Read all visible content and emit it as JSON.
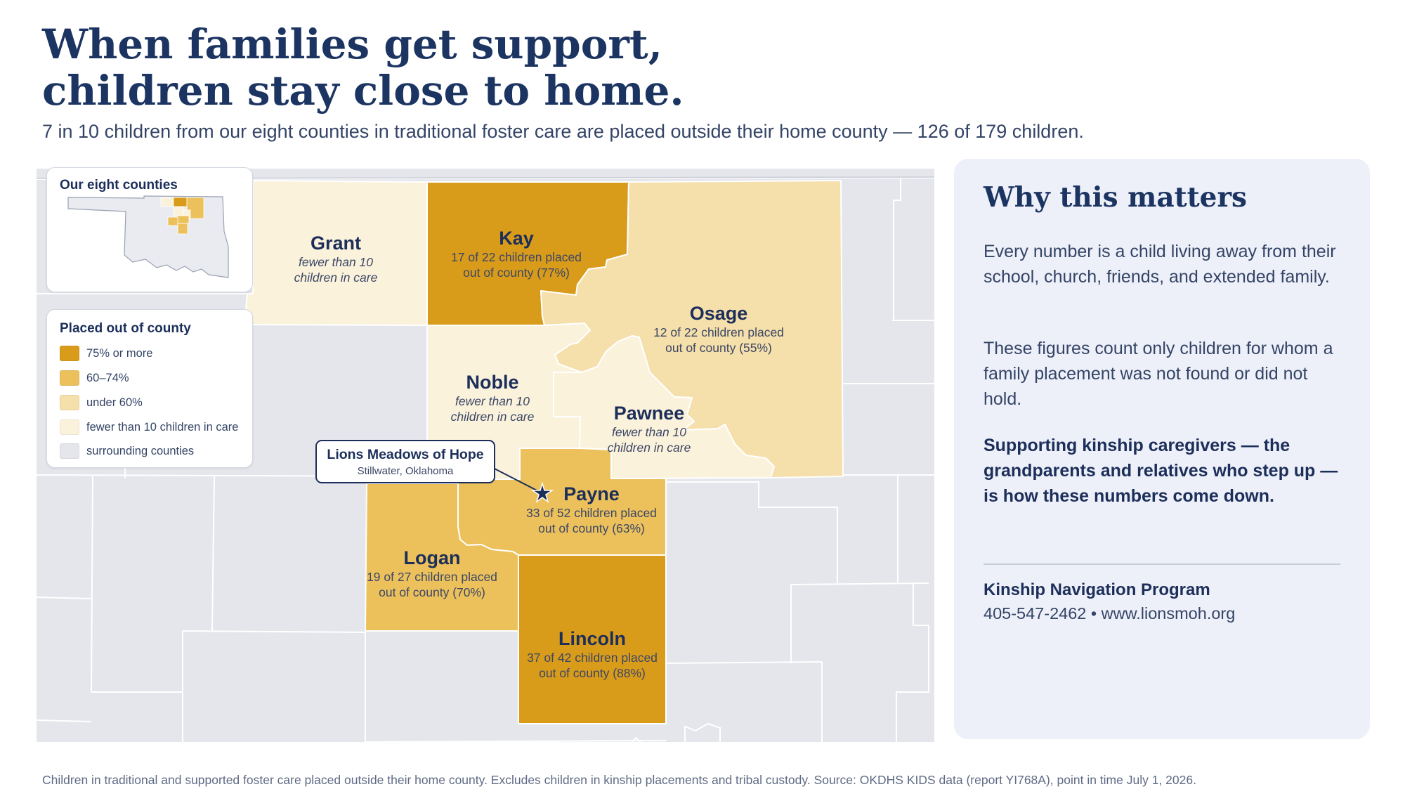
{
  "headline": {
    "line1": "When families get support,",
    "line2": "children stay close to home."
  },
  "subtitle": "7 in 10 children from our eight counties in traditional foster care are placed outside their home county — 126 of 179 children.",
  "colors": {
    "tier_75_plus": "#d99b1a",
    "tier_60_74": "#ecc15c",
    "tier_under_60": "#f5dfaa",
    "tier_fewer_10": "#fbf2dc",
    "surrounding": "#e4e6ec",
    "navy": "#1c2e5a",
    "panel_bg": "#edf0f8"
  },
  "map": {
    "counties": [
      {
        "name": "Grant",
        "stat_line1": "fewer than 10",
        "stat_line2": "children in care",
        "tier": "fewer than 10 children in care"
      },
      {
        "name": "Kay",
        "stat_line1": "17 of 22 children placed",
        "stat_line2": "out of county (77%)",
        "placed": 17,
        "total": 22,
        "percent": 77,
        "tier": "75% or more"
      },
      {
        "name": "Osage",
        "stat_line1": "12 of 22 children placed",
        "stat_line2": "out of county (55%)",
        "placed": 12,
        "total": 22,
        "percent": 55,
        "tier": "under 60%"
      },
      {
        "name": "Noble",
        "stat_line1": "fewer than 10",
        "stat_line2": "children in care",
        "tier": "fewer than 10 children in care"
      },
      {
        "name": "Pawnee",
        "stat_line1": "fewer than 10",
        "stat_line2": "children in care",
        "tier": "fewer than 10 children in care"
      },
      {
        "name": "Payne",
        "stat_line1": "33 of 52 children placed",
        "stat_line2": "out of county (63%)",
        "placed": 33,
        "total": 52,
        "percent": 63,
        "tier": "60–74%"
      },
      {
        "name": "Logan",
        "stat_line1": "19 of 27 children placed",
        "stat_line2": "out of county (70%)",
        "placed": 19,
        "total": 27,
        "percent": 70,
        "tier": "60–74%"
      },
      {
        "name": "Lincoln",
        "stat_line1": "37 of 42 children placed",
        "stat_line2": "out of county (88%)",
        "placed": 37,
        "total": 42,
        "percent": 88,
        "tier": "75% or more"
      }
    ],
    "marker": {
      "name": "Lions Meadows of Hope",
      "place": "Stillwater, Oklahoma",
      "icon": "star-icon"
    }
  },
  "inset": {
    "title": "Our eight counties"
  },
  "legend": {
    "title": "Placed out of county",
    "items": [
      {
        "label": "75% or more",
        "color": "#d99b1a"
      },
      {
        "label": "60–74%",
        "color": "#ecc15c"
      },
      {
        "label": "under 60%",
        "color": "#f5dfaa"
      },
      {
        "label": "fewer than 10 children in care",
        "color": "#fbf2dc"
      },
      {
        "label": "surrounding counties",
        "color": "#e4e6ec"
      }
    ]
  },
  "panel": {
    "title": "Why this matters",
    "p1": "Every number is a child living away from their school, church, friends, and extended family.",
    "p2": "These figures count only children for whom a family placement was not found or did not hold.",
    "p3": "Supporting kinship caregivers — the grandparents and relatives who step up — is how these numbers come down.",
    "org": "Kinship Navigation Program",
    "contact": "405-547-2462 • www.lionsmoh.org"
  },
  "footnote": "Children in traditional and supported foster care placed outside their home county. Excludes children in kinship placements and tribal custody. Source: OKDHS KIDS data (report YI768A), point in time July 1, 2026."
}
